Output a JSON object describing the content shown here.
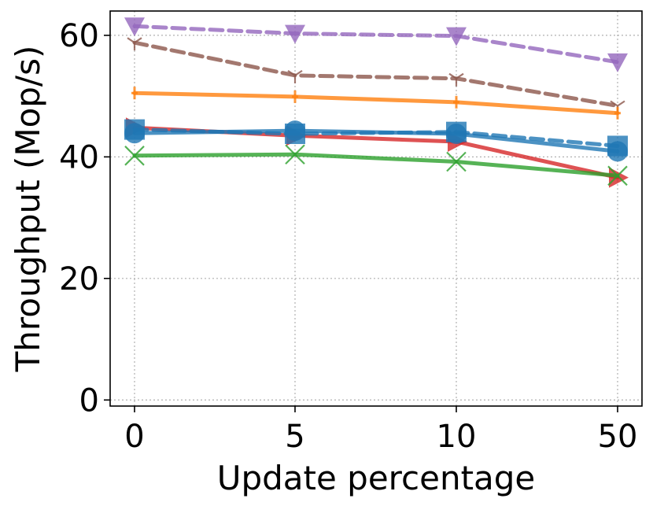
{
  "chart_data": {
    "type": "line",
    "xlabel": "Update percentage",
    "ylabel": "Throughput (Mop/s)",
    "categories": [
      "0",
      "5",
      "10",
      "50"
    ],
    "ylim": [
      -1,
      64
    ],
    "yticks": [
      0,
      20,
      40,
      60
    ],
    "grid": true,
    "series": [
      {
        "color": "#9467bd",
        "marker": "triangle-down",
        "dash": true,
        "values": [
          61.5,
          60.3,
          59.9,
          55.6
        ]
      },
      {
        "color": "#8c564b",
        "marker": "tri",
        "dash": true,
        "values": [
          58.8,
          53.4,
          52.9,
          48.4
        ]
      },
      {
        "color": "#ff7f0e",
        "marker": "plus",
        "dash": false,
        "values": [
          50.5,
          49.9,
          49.0,
          47.2
        ]
      },
      {
        "color": "#d62728",
        "marker": "triangle-right",
        "dash": false,
        "values": [
          44.8,
          43.5,
          42.5,
          36.6
        ]
      },
      {
        "color": "#1f77b4",
        "marker": "square",
        "dash": true,
        "values": [
          44.5,
          43.8,
          44.1,
          41.8
        ]
      },
      {
        "color": "#1f77b4",
        "marker": "circle",
        "dash": false,
        "values": [
          43.9,
          44.3,
          43.8,
          40.9
        ]
      },
      {
        "color": "#2ca02c",
        "marker": "x",
        "dash": false,
        "values": [
          40.2,
          40.4,
          39.2,
          36.9
        ]
      }
    ]
  }
}
